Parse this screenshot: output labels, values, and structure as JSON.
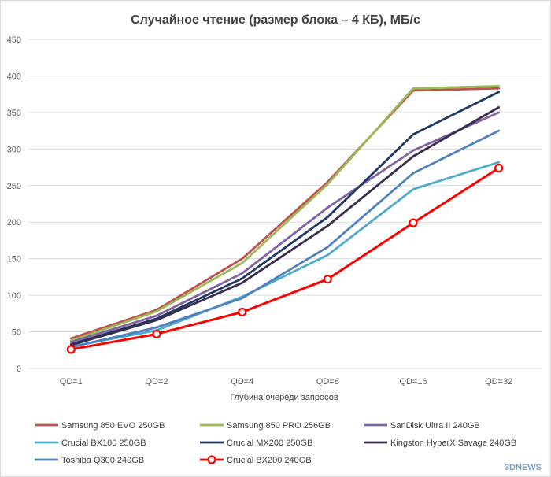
{
  "chart_data": {
    "type": "line",
    "title": "Случайное чтение (размер блока – 4 КБ), МБ/с",
    "xlabel": "Глубина очереди запросов",
    "ylabel": "",
    "categories": [
      "QD=1",
      "QD=2",
      "QD=4",
      "QD=8",
      "QD=16",
      "QD=32"
    ],
    "ylim": [
      0,
      450
    ],
    "yticks": [
      0,
      50,
      100,
      150,
      200,
      250,
      300,
      350,
      400,
      450
    ],
    "grid": true,
    "legend_position": "bottom",
    "series": [
      {
        "name": "Samsung 850 EVO 250GB",
        "color": "#c0504d",
        "marker": false,
        "values": [
          41,
          80,
          150,
          255,
          380,
          383
        ]
      },
      {
        "name": "Samsung 850 PRO 256GB",
        "color": "#9bbb59",
        "marker": false,
        "values": [
          38,
          78,
          144,
          252,
          383,
          386
        ]
      },
      {
        "name": "SanDisk Ultra II 240GB",
        "color": "#8064a2",
        "marker": false,
        "values": [
          36,
          72,
          130,
          220,
          298,
          350
        ]
      },
      {
        "name": "Crucial BX100 250GB",
        "color": "#4bacc6",
        "marker": false,
        "values": [
          30,
          52,
          98,
          155,
          245,
          282
        ]
      },
      {
        "name": "Crucial MX200 250GB",
        "color": "#1f3864",
        "marker": false,
        "values": [
          33,
          68,
          123,
          207,
          320,
          378
        ]
      },
      {
        "name": "Kingston HyperX Savage 240GB",
        "color": "#3a2c4f",
        "marker": false,
        "values": [
          32,
          66,
          117,
          195,
          290,
          357
        ]
      },
      {
        "name": "Toshiba Q300 240GB",
        "color": "#4f81bd",
        "marker": false,
        "values": [
          29,
          56,
          96,
          166,
          267,
          325
        ]
      },
      {
        "name": "Crucial BX200 240GB",
        "color": "#ff0000",
        "marker": true,
        "values": [
          26,
          47,
          77,
          122,
          199,
          274
        ]
      }
    ]
  },
  "watermark": "3DNEWS"
}
